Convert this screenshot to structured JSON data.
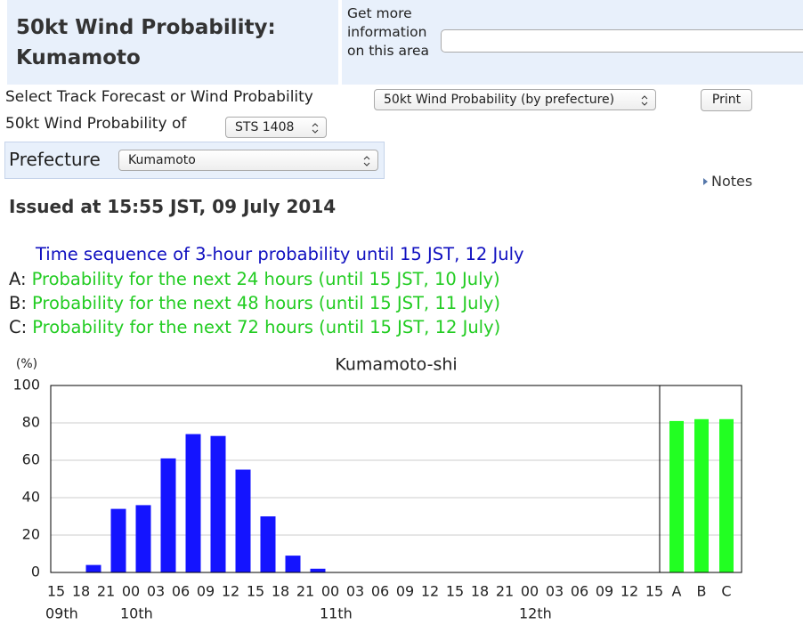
{
  "header": {
    "title": "50kt Wind Probability: Kumamoto",
    "info_label": "Get more information on this area"
  },
  "controls": {
    "track_label": "Select Track Forecast or Wind Probability",
    "track_select": "50kt Wind Probability (by prefecture)",
    "print_button": "Print",
    "storm_label": "50kt Wind Probability of",
    "storm_select": "STS 1408",
    "prefecture_label": "Prefecture",
    "prefecture_select": "Kumamoto",
    "notes_link": "Notes"
  },
  "issued": "Issued at 15:55 JST, 09 July 2014",
  "legend": {
    "sequence": "Time sequence of 3-hour probability until 15 JST, 12 July",
    "periods": [
      {
        "key": "A:",
        "text": "Probability for the next 24 hours (until 15 JST, 10 July)"
      },
      {
        "key": "B:",
        "text": "Probability for the next 48 hours (until 15 JST, 11 July)"
      },
      {
        "key": "C:",
        "text": "Probability for the next 72 hours (until 15 JST, 12 July)"
      }
    ]
  },
  "chart_data": {
    "type": "bar",
    "title": "Kumamoto-shi",
    "ylabel": "(%)",
    "time_ticks": [
      "15",
      "18",
      "21",
      "00",
      "03",
      "06",
      "09",
      "12",
      "15",
      "18",
      "21",
      "00",
      "03",
      "06",
      "09",
      "12",
      "15",
      "18",
      "21",
      "00",
      "03",
      "06",
      "09",
      "12",
      "15"
    ],
    "day_labels": [
      "09th",
      null,
      null,
      "10th",
      null,
      null,
      null,
      null,
      null,
      null,
      null,
      "11th",
      null,
      null,
      null,
      null,
      null,
      null,
      null,
      "12th",
      null,
      null,
      null,
      null,
      null
    ],
    "values": [
      0,
      4,
      34,
      36,
      61,
      74,
      73,
      55,
      30,
      9,
      2,
      0,
      0,
      0,
      0,
      0,
      0,
      0,
      0,
      0,
      0,
      0,
      0,
      0
    ],
    "color": "#1414ff",
    "summary": {
      "categories": [
        "A",
        "B",
        "C"
      ],
      "values": [
        81,
        82,
        82
      ],
      "color": "#22ff22"
    },
    "ylim": [
      0,
      100
    ],
    "yticks": [
      0,
      20,
      40,
      60,
      80,
      100
    ],
    "grid": true
  }
}
